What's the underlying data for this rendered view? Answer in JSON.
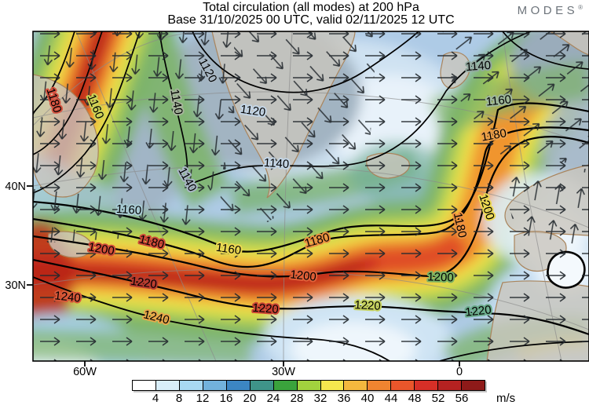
{
  "header": {
    "title": "Total circulation (all modes) at 200 hPa",
    "subtitle": "Base 31/10/2025 00 UTC, valid 02/11/2025 12 UTC",
    "brand": "MODES",
    "brand_mark": "®"
  },
  "axes": {
    "y": [
      {
        "label": "40N"
      },
      {
        "label": "30N"
      }
    ],
    "x": [
      {
        "label": "60W"
      },
      {
        "label": "30W"
      },
      {
        "label": "0"
      }
    ]
  },
  "colorbar": {
    "ticks": [
      4,
      8,
      12,
      16,
      20,
      24,
      28,
      32,
      36,
      40,
      44,
      48,
      52,
      56
    ],
    "colors": [
      "#ffffff",
      "#d9eef9",
      "#a8d9f2",
      "#72b2dc",
      "#3c86c3",
      "#3f9489",
      "#3aa33c",
      "#a2d23e",
      "#f5e84e",
      "#f4b83e",
      "#ef8430",
      "#e9562b",
      "#d62f27",
      "#b52221",
      "#8e1a19"
    ],
    "unit": "m/s"
  },
  "map": {
    "labels": [
      "1180",
      "1160",
      "1140",
      "1120",
      "1120",
      "1140",
      "1140",
      "1140",
      "1160",
      "1180",
      "1160",
      "1160",
      "1180",
      "1200",
      "1220",
      "1240",
      "1240",
      "1180",
      "1200",
      "1220",
      "1220",
      "1200",
      "1220",
      "1200",
      "1180"
    ]
  },
  "chart_data": {
    "type": "heatmap",
    "title": "Total circulation (all modes) at 200 hPa",
    "subtitle": "Base 31/10/2025 00 UTC, valid 02/11/2025 12 UTC",
    "base_time": "31/10/2025 00 UTC",
    "valid_time": "02/11/2025 12 UTC",
    "level": "200 hPa",
    "units": "m/s",
    "colorbar_ticks": [
      4,
      8,
      12,
      16,
      20,
      24,
      28,
      32,
      36,
      40,
      44,
      48,
      52,
      56
    ],
    "colorbar_colors": [
      "#ffffff",
      "#d9eef9",
      "#a8d9f2",
      "#72b2dc",
      "#3c86c3",
      "#3f9489",
      "#3aa33c",
      "#a2d23e",
      "#f5e84e",
      "#f4b83e",
      "#ef8430",
      "#e9562b",
      "#d62f27",
      "#b52221",
      "#8e1a19"
    ],
    "x_tick_labels": [
      "60W",
      "30W",
      "0"
    ],
    "y_tick_labels": [
      "40N",
      "30N"
    ],
    "contour_levels_labeled": [
      1120,
      1140,
      1160,
      1180,
      1200,
      1220,
      1240
    ],
    "overlays": [
      "wind direction arrows",
      "black contour lines",
      "coastlines",
      "gray graticule"
    ],
    "legend_position": "bottom",
    "grid": "graticule"
  }
}
